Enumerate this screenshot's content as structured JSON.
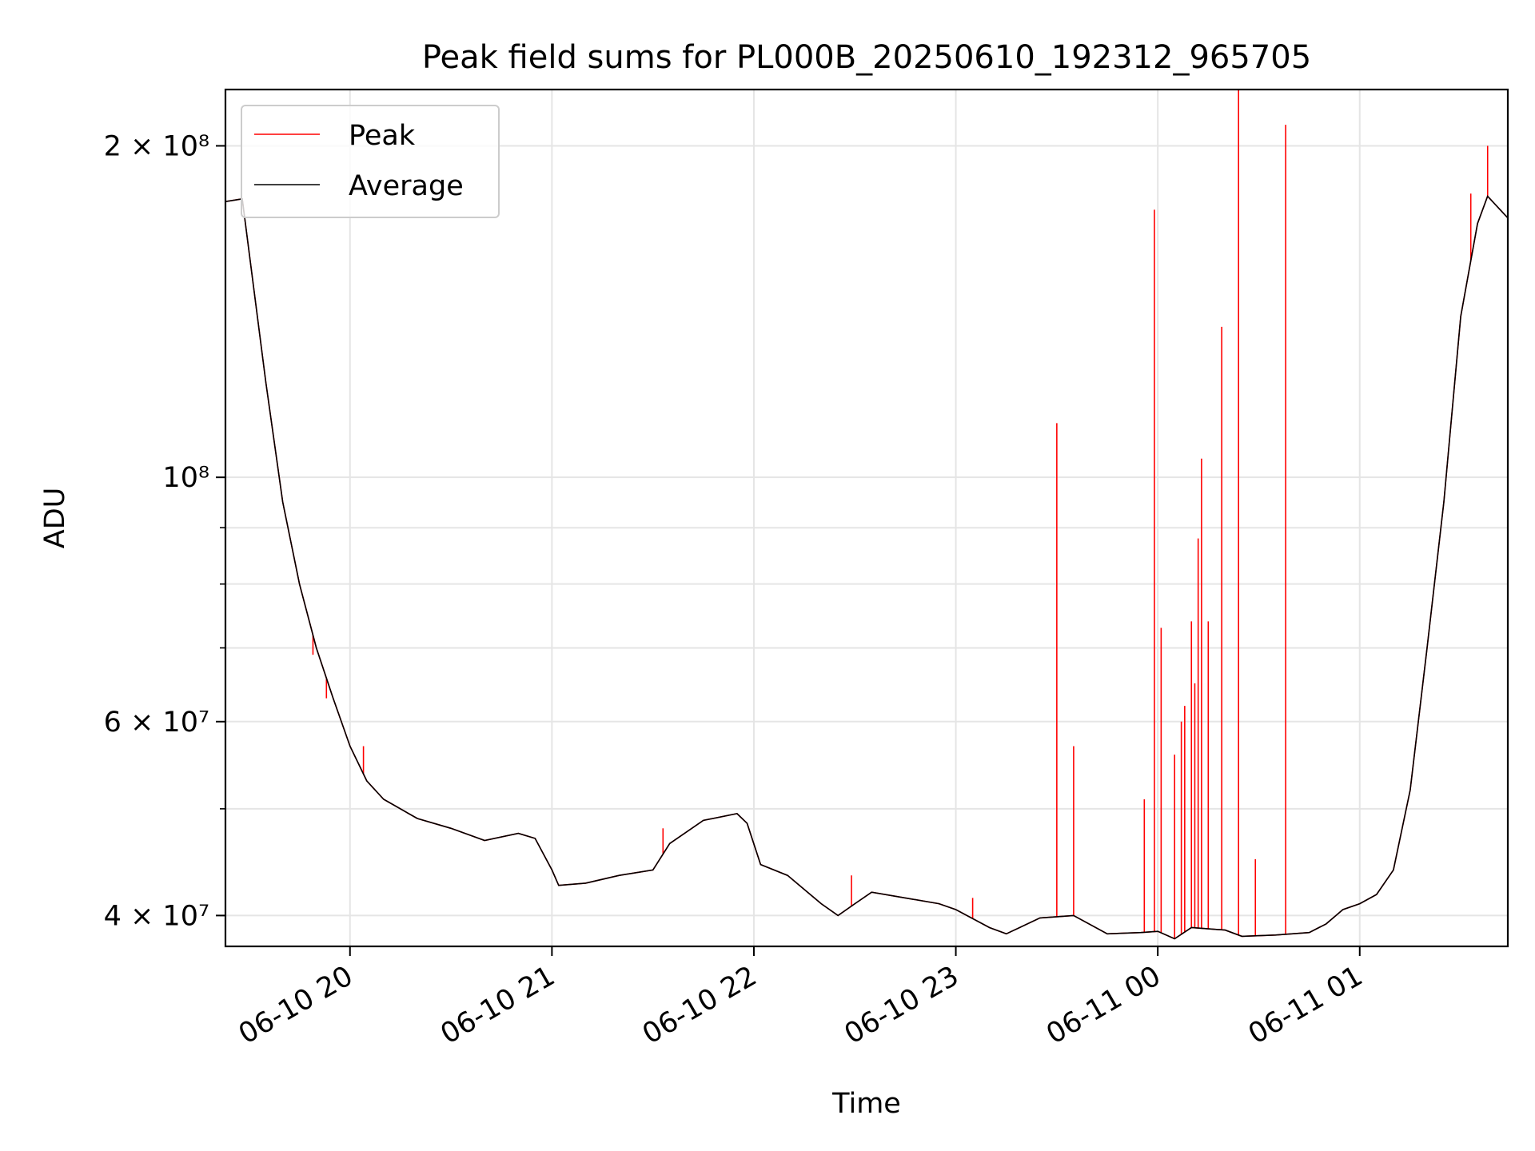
{
  "chart_data": {
    "type": "line",
    "title": "Peak field sums for PL000B_20250610_192312_965705",
    "xlabel": "Time",
    "ylabel": "ADU",
    "yscale": "log",
    "xlim": [
      "2025-06-10 19:23",
      "2025-06-11 01:44"
    ],
    "ylim": [
      37500000,
      225000000
    ],
    "grid": true,
    "legend_position": "top-left",
    "x_ticks": [
      "06-10 20",
      "06-10 21",
      "06-10 22",
      "06-10 23",
      "06-11 00",
      "06-11 01"
    ],
    "y_ticks": [
      "4 × 10⁷",
      "6 × 10⁷",
      "10⁸",
      "2 × 10⁸"
    ],
    "series": [
      {
        "name": "Average",
        "color": "#000000",
        "points": [
          [
            "2025-06-10 19:23",
            178000000
          ],
          [
            "2025-06-10 19:28",
            179000000
          ],
          [
            "2025-06-10 19:35",
            122000000
          ],
          [
            "2025-06-10 19:40",
            95000000
          ],
          [
            "2025-06-10 19:45",
            80000000
          ],
          [
            "2025-06-10 19:50",
            70000000
          ],
          [
            "2025-06-10 19:55",
            63000000
          ],
          [
            "2025-06-10 20:00",
            57000000
          ],
          [
            "2025-06-10 20:05",
            53000000
          ],
          [
            "2025-06-10 20:10",
            51000000
          ],
          [
            "2025-06-10 20:20",
            49000000
          ],
          [
            "2025-06-10 20:30",
            48000000
          ],
          [
            "2025-06-10 20:40",
            46800000
          ],
          [
            "2025-06-10 20:50",
            47500000
          ],
          [
            "2025-06-10 20:55",
            47000000
          ],
          [
            "2025-06-10 21:00",
            44000000
          ],
          [
            "2025-06-10 21:02",
            42600000
          ],
          [
            "2025-06-10 21:10",
            42800000
          ],
          [
            "2025-06-10 21:20",
            43500000
          ],
          [
            "2025-06-10 21:30",
            44000000
          ],
          [
            "2025-06-10 21:35",
            46500000
          ],
          [
            "2025-06-10 21:45",
            48800000
          ],
          [
            "2025-06-10 21:55",
            49500000
          ],
          [
            "2025-06-10 21:58",
            48500000
          ],
          [
            "2025-06-10 22:02",
            44500000
          ],
          [
            "2025-06-10 22:10",
            43500000
          ],
          [
            "2025-06-10 22:20",
            41000000
          ],
          [
            "2025-06-10 22:25",
            40000000
          ],
          [
            "2025-06-10 22:30",
            41000000
          ],
          [
            "2025-06-10 22:35",
            42000000
          ],
          [
            "2025-06-10 22:45",
            41500000
          ],
          [
            "2025-06-10 22:55",
            41000000
          ],
          [
            "2025-06-10 23:00",
            40500000
          ],
          [
            "2025-06-10 23:10",
            39000000
          ],
          [
            "2025-06-10 23:15",
            38500000
          ],
          [
            "2025-06-10 23:25",
            39800000
          ],
          [
            "2025-06-10 23:35",
            40000000
          ],
          [
            "2025-06-10 23:45",
            38500000
          ],
          [
            "2025-06-10 23:55",
            38600000
          ],
          [
            "2025-06-11 00:00",
            38700000
          ],
          [
            "2025-06-11 00:05",
            38100000
          ],
          [
            "2025-06-11 00:10",
            39000000
          ],
          [
            "2025-06-11 00:20",
            38800000
          ],
          [
            "2025-06-11 00:25",
            38300000
          ],
          [
            "2025-06-11 00:35",
            38400000
          ],
          [
            "2025-06-11 00:45",
            38600000
          ],
          [
            "2025-06-11 00:50",
            39300000
          ],
          [
            "2025-06-11 00:55",
            40500000
          ],
          [
            "2025-06-11 01:00",
            41000000
          ],
          [
            "2025-06-11 01:05",
            41800000
          ],
          [
            "2025-06-11 01:10",
            44000000
          ],
          [
            "2025-06-11 01:15",
            52000000
          ],
          [
            "2025-06-11 01:20",
            70000000
          ],
          [
            "2025-06-11 01:25",
            95000000
          ],
          [
            "2025-06-11 01:30",
            140000000
          ],
          [
            "2025-06-11 01:35",
            170000000
          ],
          [
            "2025-06-11 01:38",
            180000000
          ],
          [
            "2025-06-11 01:44",
            172000000
          ]
        ]
      },
      {
        "name": "Peak",
        "color": "#ff0000",
        "points": [
          [
            "2025-06-10 19:23",
            178000000
          ],
          [
            "2025-06-10 19:28",
            179000000
          ],
          [
            "2025-06-10 19:35",
            122000000
          ],
          [
            "2025-06-10 19:40",
            95000000
          ],
          [
            "2025-06-10 19:45",
            80000000
          ],
          [
            "2025-06-10 19:50",
            70000000
          ],
          [
            "2025-06-10 19:55",
            63000000
          ],
          [
            "2025-06-10 20:00",
            57000000
          ],
          [
            "2025-06-10 20:05",
            53000000
          ],
          [
            "2025-06-10 20:10",
            51000000
          ],
          [
            "2025-06-10 20:20",
            49000000
          ],
          [
            "2025-06-10 20:30",
            48000000
          ],
          [
            "2025-06-10 20:40",
            46800000
          ],
          [
            "2025-06-10 20:50",
            47500000
          ],
          [
            "2025-06-10 20:55",
            47000000
          ],
          [
            "2025-06-10 21:00",
            44000000
          ],
          [
            "2025-06-10 21:02",
            42600000
          ],
          [
            "2025-06-10 21:10",
            42800000
          ],
          [
            "2025-06-10 21:20",
            43500000
          ],
          [
            "2025-06-10 21:30",
            44000000
          ],
          [
            "2025-06-10 21:35",
            46500000
          ],
          [
            "2025-06-10 21:45",
            48800000
          ],
          [
            "2025-06-10 21:55",
            49500000
          ],
          [
            "2025-06-10 21:58",
            48500000
          ],
          [
            "2025-06-10 22:02",
            44500000
          ],
          [
            "2025-06-10 22:10",
            43500000
          ],
          [
            "2025-06-10 22:20",
            41000000
          ],
          [
            "2025-06-10 22:25",
            40000000
          ],
          [
            "2025-06-10 22:30",
            41000000
          ],
          [
            "2025-06-10 22:35",
            42000000
          ],
          [
            "2025-06-10 22:45",
            41500000
          ],
          [
            "2025-06-10 22:55",
            41000000
          ],
          [
            "2025-06-10 23:00",
            40500000
          ],
          [
            "2025-06-10 23:10",
            39000000
          ],
          [
            "2025-06-10 23:15",
            38500000
          ],
          [
            "2025-06-10 23:25",
            39800000
          ],
          [
            "2025-06-10 23:35",
            40000000
          ],
          [
            "2025-06-10 23:45",
            38500000
          ],
          [
            "2025-06-10 23:55",
            38600000
          ],
          [
            "2025-06-11 00:00",
            38700000
          ],
          [
            "2025-06-11 00:05",
            38100000
          ],
          [
            "2025-06-11 00:10",
            39000000
          ],
          [
            "2025-06-11 00:20",
            38800000
          ],
          [
            "2025-06-11 00:25",
            38300000
          ],
          [
            "2025-06-11 00:35",
            38400000
          ],
          [
            "2025-06-11 00:45",
            38600000
          ],
          [
            "2025-06-11 00:50",
            39300000
          ],
          [
            "2025-06-11 00:55",
            40500000
          ],
          [
            "2025-06-11 01:00",
            41000000
          ],
          [
            "2025-06-11 01:05",
            41800000
          ],
          [
            "2025-06-11 01:10",
            44000000
          ],
          [
            "2025-06-11 01:15",
            52000000
          ],
          [
            "2025-06-11 01:20",
            70000000
          ],
          [
            "2025-06-11 01:25",
            95000000
          ],
          [
            "2025-06-11 01:30",
            140000000
          ],
          [
            "2025-06-11 01:35",
            170000000
          ],
          [
            "2025-06-11 01:38",
            180000000
          ],
          [
            "2025-06-11 01:44",
            172000000
          ]
        ],
        "spikes": [
          [
            "2025-06-10 19:49",
            69000000
          ],
          [
            "2025-06-10 19:53",
            63000000
          ],
          [
            "2025-06-10 20:04",
            57000000
          ],
          [
            "2025-06-10 21:33",
            48000000
          ],
          [
            "2025-06-10 22:29",
            43500000
          ],
          [
            "2025-06-10 23:05",
            41500000
          ],
          [
            "2025-06-10 23:30",
            112000000
          ],
          [
            "2025-06-10 23:35",
            57000000
          ],
          [
            "2025-06-10 23:56",
            51000000
          ],
          [
            "2025-06-10 23:59",
            175000000
          ],
          [
            "2025-06-11 00:01",
            73000000
          ],
          [
            "2025-06-11 00:05",
            56000000
          ],
          [
            "2025-06-11 00:07",
            60000000
          ],
          [
            "2025-06-11 00:08",
            62000000
          ],
          [
            "2025-06-11 00:10",
            74000000
          ],
          [
            "2025-06-11 00:11",
            65000000
          ],
          [
            "2025-06-11 00:12",
            88000000
          ],
          [
            "2025-06-11 00:13",
            104000000
          ],
          [
            "2025-06-11 00:15",
            74000000
          ],
          [
            "2025-06-11 00:19",
            137000000
          ],
          [
            "2025-06-11 00:24",
            226000000
          ],
          [
            "2025-06-11 00:29",
            45000000
          ],
          [
            "2025-06-11 00:38",
            209000000
          ],
          [
            "2025-06-11 01:33",
            181000000
          ],
          [
            "2025-06-11 01:38",
            200000000
          ]
        ]
      }
    ]
  }
}
